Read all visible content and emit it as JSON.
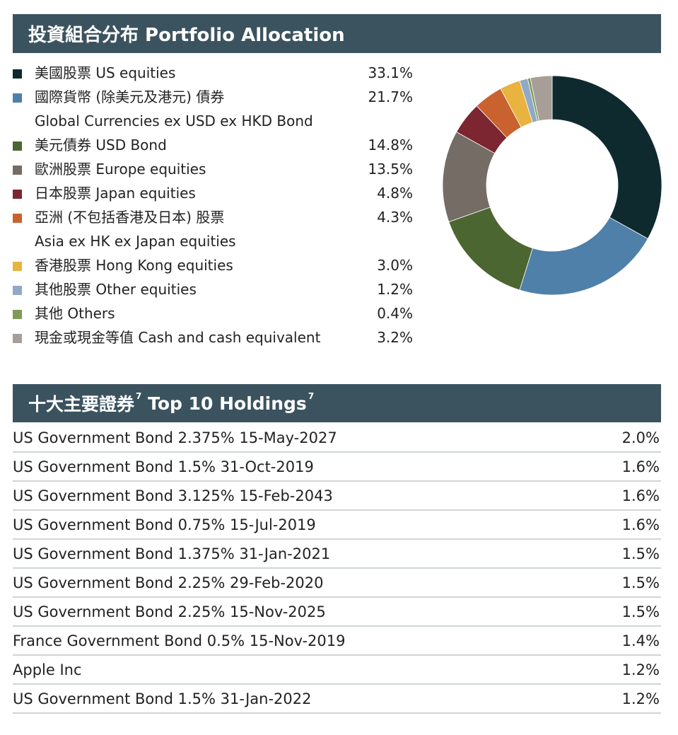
{
  "allocation": {
    "title": "投資組合分布 Portfolio Allocation",
    "items": [
      {
        "label_zh": "美國股票",
        "label_en": "US equities",
        "label_en2": "",
        "value": "33.1%",
        "color": "#0f2a2f"
      },
      {
        "label_zh": "國際貨幣 (除美元及港元) 債券",
        "label_en": "",
        "label_en2": "Global Currencies ex USD ex HKD Bond",
        "value": "21.7%",
        "color": "#4f80aa"
      },
      {
        "label_zh": "美元債券",
        "label_en": "USD Bond",
        "label_en2": "",
        "value": "14.8%",
        "color": "#4b6630"
      },
      {
        "label_zh": "歐洲股票",
        "label_en": "Europe equities",
        "label_en2": "",
        "value": "13.5%",
        "color": "#756c65"
      },
      {
        "label_zh": "日本股票",
        "label_en": "Japan equities",
        "label_en2": "",
        "value": "4.8%",
        "color": "#7b2631"
      },
      {
        "label_zh": "亞洲 (不包括香港及日本) 股票",
        "label_en": "",
        "label_en2": "Asia ex HK ex Japan equities",
        "value": "4.3%",
        "color": "#c9622e"
      },
      {
        "label_zh": "香港股票",
        "label_en": "Hong Kong equities",
        "label_en2": "",
        "value": "3.0%",
        "color": "#e8b33e"
      },
      {
        "label_zh": "其他股票",
        "label_en": "Other equities",
        "label_en2": "",
        "value": "1.2%",
        "color": "#8fa9c7"
      },
      {
        "label_zh": "其他",
        "label_en": "Others",
        "label_en2": "",
        "value": "0.4%",
        "color": "#7f9a57"
      },
      {
        "label_zh": "現金或現金等值",
        "label_en": "Cash and cash equivalent",
        "label_en2": "",
        "value": "3.2%",
        "color": "#a79e97"
      }
    ]
  },
  "chart_data": {
    "type": "pie",
    "categories": [
      "US equities",
      "Global Currencies ex USD ex HKD Bond",
      "USD Bond",
      "Europe equities",
      "Japan equities",
      "Asia ex HK ex Japan equities",
      "Hong Kong equities",
      "Other equities",
      "Others",
      "Cash and cash equivalent"
    ],
    "values": [
      33.1,
      21.7,
      14.8,
      13.5,
      4.8,
      4.3,
      3.0,
      1.2,
      0.4,
      3.2
    ],
    "colors": [
      "#0f2a2f",
      "#4f80aa",
      "#4b6630",
      "#756c65",
      "#7b2631",
      "#c9622e",
      "#e8b33e",
      "#8fa9c7",
      "#7f9a57",
      "#a79e97"
    ],
    "donut": true
  },
  "holdings": {
    "title": "十大主要證券",
    "title_en": "Top 10 Holdings",
    "footnote": "7",
    "rows": [
      {
        "name": "US Government Bond 2.375% 15-May-2027",
        "pct": "2.0%"
      },
      {
        "name": "US Government Bond 1.5% 31-Oct-2019",
        "pct": "1.6%"
      },
      {
        "name": "US Government Bond 3.125% 15-Feb-2043",
        "pct": "1.6%"
      },
      {
        "name": "US Government Bond 0.75% 15-Jul-2019",
        "pct": "1.6%"
      },
      {
        "name": "US Government Bond 1.375% 31-Jan-2021",
        "pct": "1.5%"
      },
      {
        "name": "US Government Bond 2.25% 29-Feb-2020",
        "pct": "1.5%"
      },
      {
        "name": "US Government Bond 2.25% 15-Nov-2025",
        "pct": "1.5%"
      },
      {
        "name": "France Government Bond 0.5% 15-Nov-2019",
        "pct": "1.4%"
      },
      {
        "name": "Apple Inc",
        "pct": "1.2%"
      },
      {
        "name": "US Government Bond 1.5% 31-Jan-2022",
        "pct": "1.2%"
      }
    ]
  }
}
